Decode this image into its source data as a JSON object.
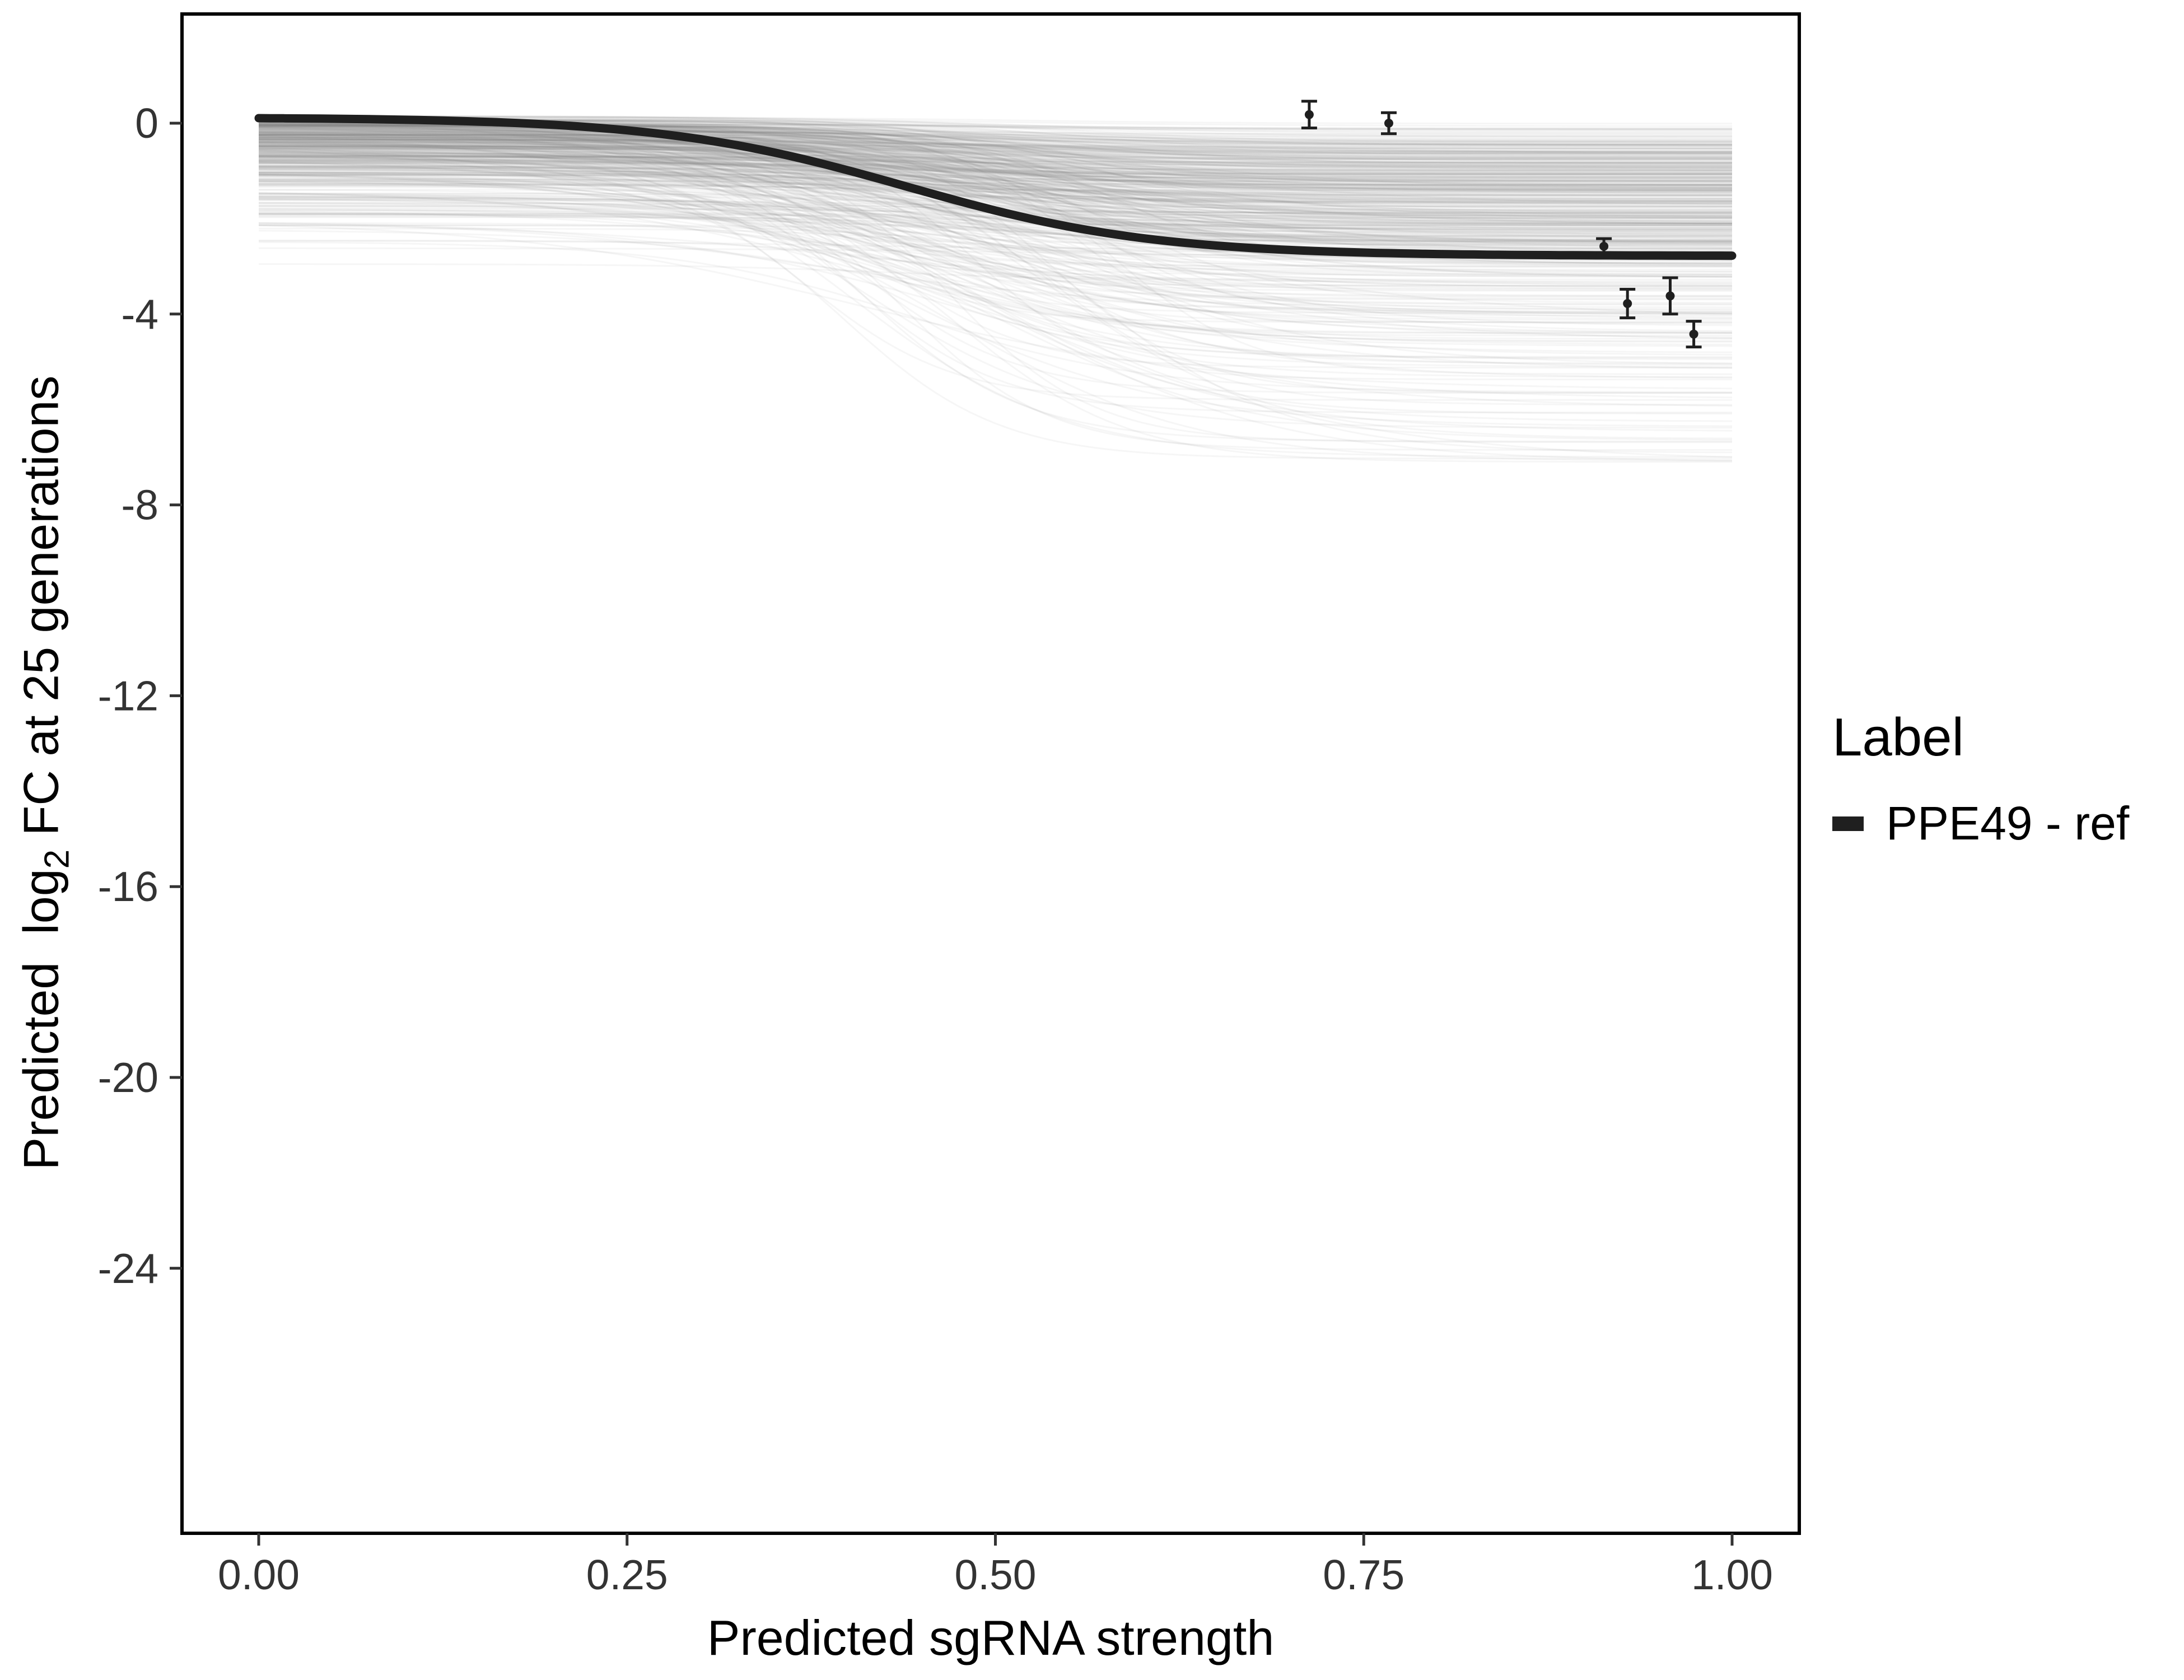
{
  "chart_data": {
    "type": "line",
    "title": "",
    "xlabel": "Predicted sgRNA strength",
    "ylabel": {
      "pre": "Predicted  log",
      "sub": "2",
      "post": " FC at 25 generations"
    },
    "x_ticks": {
      "values": [
        0,
        0.25,
        0.5,
        0.75,
        1.0
      ],
      "labels": [
        "0.00",
        "0.25",
        "0.50",
        "0.75",
        "1.00"
      ]
    },
    "y_ticks": {
      "values": [
        0,
        -4,
        -8,
        -12,
        -16,
        -20,
        -24
      ],
      "labels": [
        "0",
        "-4",
        "-8",
        "-12",
        "-16",
        "-20",
        "-24"
      ]
    },
    "x_range": [
      -0.052,
      1.046
    ],
    "y_range": [
      -29.6,
      2.3
    ],
    "grid": false,
    "legend_position": "right",
    "main_curve": {
      "name": "PPE49 - ref",
      "shape": "sigmoid",
      "top": 0.12,
      "bottom": -2.78,
      "midpoint": 0.44,
      "slope": 12,
      "color": "#1f1f1f",
      "width": 15
    },
    "background_curves": {
      "description": "ensemble of thin translucent sigmoid draws",
      "count": 500,
      "seed": 12,
      "color": "#808080",
      "opacity": 0.07,
      "width": 3,
      "top_mean": 0.15,
      "top_spread": 0.8,
      "low_top_prob": 0.07,
      "low_top_extra": 2.2,
      "drop_min": 0.1,
      "drop_scale": 1.4,
      "drop_max": 6.6,
      "floor": -7.1,
      "mid_min": 0.36,
      "mid_span": 0.22,
      "slope_min": 8,
      "slope_span": 14
    },
    "points": [
      {
        "x": 0.713,
        "y": 0.18,
        "err": 0.28
      },
      {
        "x": 0.767,
        "y": 0.0,
        "err": 0.22
      },
      {
        "x": 0.913,
        "y": -2.58,
        "err": 0.16
      },
      {
        "x": 0.929,
        "y": -3.78,
        "err": 0.3
      },
      {
        "x": 0.958,
        "y": -3.62,
        "err": 0.38
      },
      {
        "x": 0.974,
        "y": -4.42,
        "err": 0.27
      }
    ],
    "legend": {
      "title": "Label",
      "items": [
        {
          "label": "PPE49 - ref",
          "swatch_color": "#1f1f1f"
        }
      ]
    },
    "colors": {
      "background": "#ffffff",
      "border": "#000000",
      "axis_text": "#333333",
      "axis_title": "#000000",
      "tick_mark": "#333333",
      "point": "#1f1f1f"
    }
  }
}
